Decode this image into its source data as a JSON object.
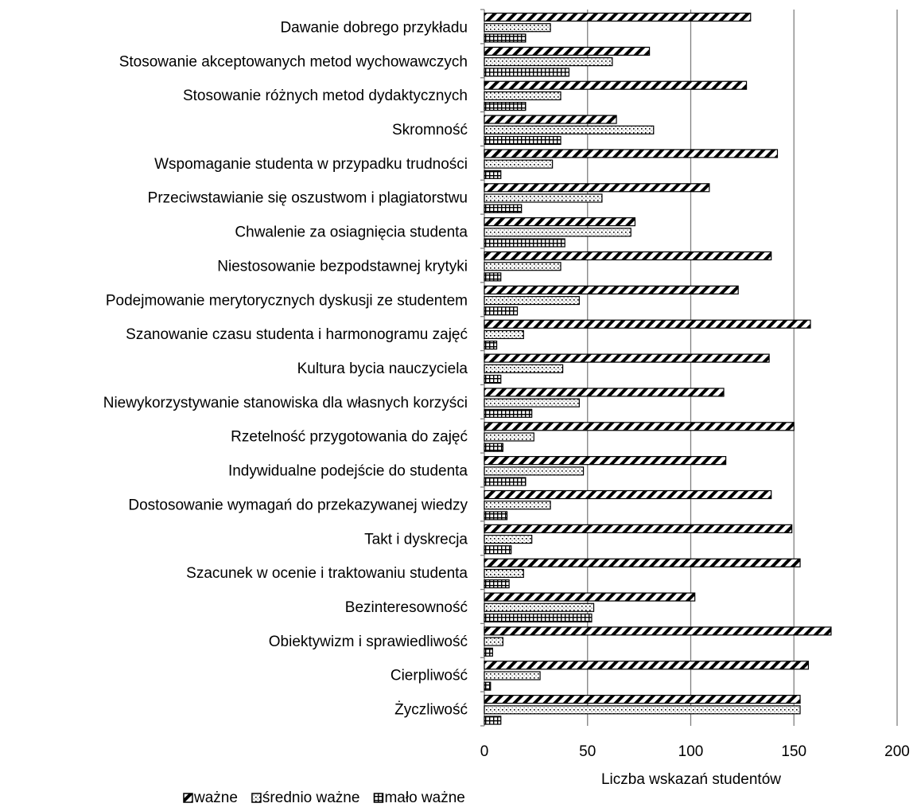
{
  "chart_data": {
    "type": "bar",
    "orientation": "horizontal",
    "categories": [
      "Dawanie dobrego przykładu",
      "Stosowanie akceptowanych  metod wychowawczych",
      "Stosowanie różnych metod dydaktycznych",
      "Skromność",
      "Wspomaganie studenta w przypadku trudności",
      "Przeciwstawianie się oszustwom i plagiatorstwu",
      "Chwalenie za osiagnięcia studenta",
      "Niestosowanie bezpodstawnej krytyki",
      "Podejmowanie merytorycznych dyskusji ze studentem",
      "Szanowanie czasu studenta i harmonogramu zajęć",
      "Kultura bycia nauczyciela",
      "Niewykorzystywanie stanowiska dla własnych korzyści",
      "Rzetelność przygotowania do zajęć",
      "Indywidualne podejście do studenta",
      "Dostosowanie wymagań do przekazywanej wiedzy",
      "Takt i dyskrecja",
      "Szacunek w ocenie i traktowaniu studenta",
      "Bezinteresowność",
      "Obiektywizm i sprawiedliwość",
      "Cierpliwość",
      "Życzliwość"
    ],
    "series": [
      {
        "name": "ważne",
        "pattern": "diagonal",
        "values": [
          129,
          80,
          127,
          64,
          142,
          109,
          73,
          139,
          123,
          158,
          138,
          116,
          150,
          117,
          139,
          149,
          153,
          102,
          168,
          157,
          153
        ]
      },
      {
        "name": "średnio ważne",
        "pattern": "dots",
        "values": [
          32,
          62,
          37,
          82,
          33,
          57,
          71,
          37,
          46,
          19,
          38,
          46,
          24,
          48,
          32,
          23,
          19,
          53,
          9,
          27,
          153
        ]
      },
      {
        "name": "mało ważne",
        "pattern": "grid",
        "values": [
          20,
          41,
          20,
          37,
          8,
          18,
          39,
          8,
          16,
          6,
          8,
          23,
          9,
          20,
          11,
          13,
          12,
          52,
          4,
          3,
          8
        ]
      }
    ],
    "xlabel": "Liczba wskazań studentów",
    "ylabel": "",
    "xlim": [
      0,
      200
    ],
    "xticks": [
      0,
      50,
      100,
      150,
      200
    ],
    "grid": "vertical",
    "legend_position": "bottom-left"
  }
}
